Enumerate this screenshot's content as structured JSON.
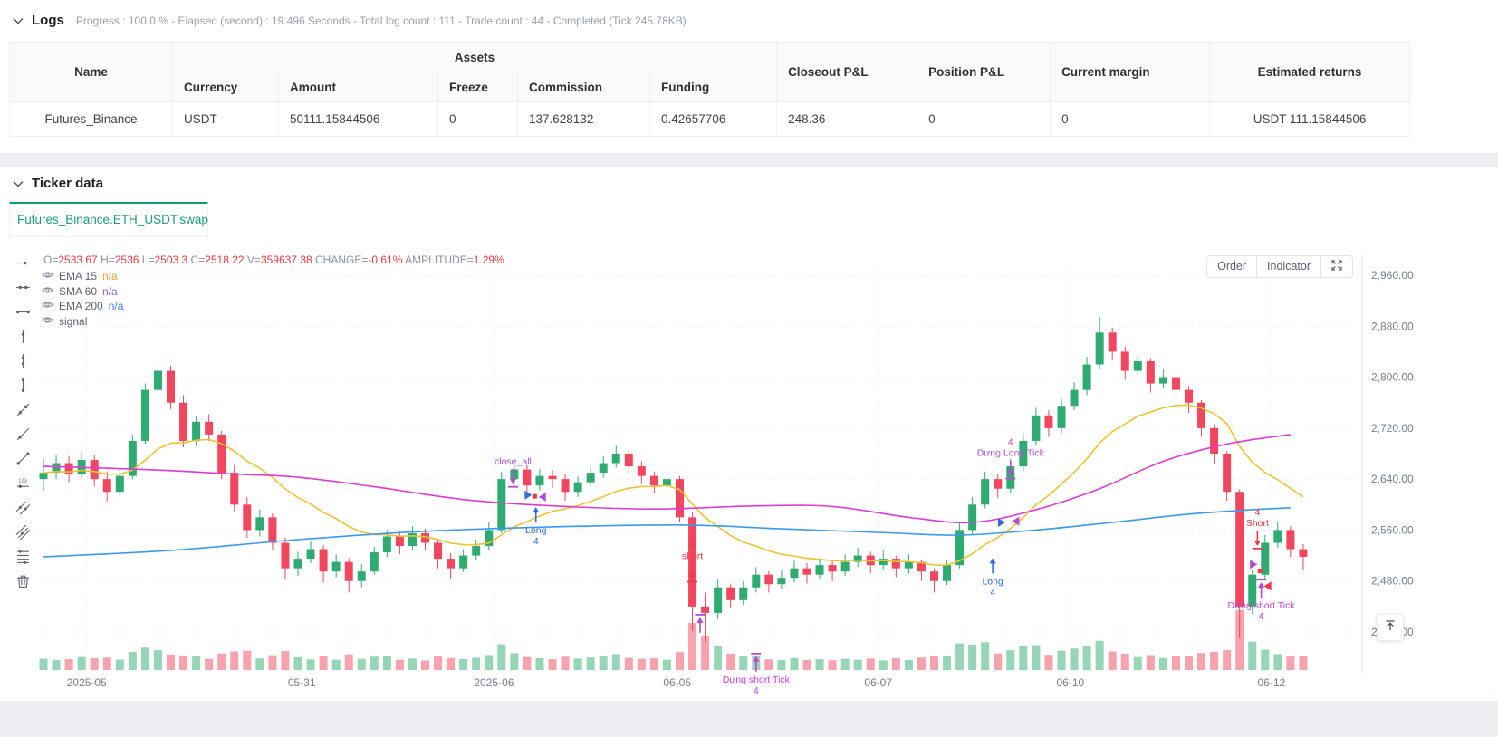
{
  "logs": {
    "title": "Logs",
    "summary": "Progress : 100.0 % - Elapsed (second) : 19.496  Seconds - Total log count : 111 - Trade count : 44 - Completed (Tick 245.78KB)"
  },
  "table": {
    "headers": {
      "name": "Name",
      "assets_group": "Assets",
      "currency": "Currency",
      "amount": "Amount",
      "freeze": "Freeze",
      "commission": "Commission",
      "funding": "Funding",
      "closeout": "Closeout P&L",
      "position": "Position P&L",
      "margin": "Current margin",
      "returns": "Estimated returns"
    },
    "rows": [
      {
        "name": "Futures_Binance",
        "currency": "USDT",
        "amount": "50111.15844506",
        "freeze": "0",
        "commission": "137.628132",
        "funding": "0.42657706",
        "closeout": "248.36",
        "position": "0",
        "margin": "0",
        "returns": "USDT 111.15844506"
      }
    ]
  },
  "ticker": {
    "title": "Ticker data",
    "tab_label": "Futures_Binance.ETH_USDT.swap"
  },
  "chart_toolbar": {
    "order": "Order",
    "indicator": "Indicator"
  },
  "chart_data": {
    "type": "candlestick",
    "ohlc_readout": [
      [
        "O=",
        "2533.67"
      ],
      [
        "H=",
        "2536"
      ],
      [
        "L=",
        "2503.3"
      ],
      [
        "C=",
        "2518.22"
      ],
      [
        "V=",
        "359637.38"
      ],
      [
        "CHANGE=",
        "-0.61%"
      ],
      [
        "AMPLITUDE=",
        "1.29%"
      ]
    ],
    "indicators": [
      {
        "name": "EMA 15",
        "value": "n/a",
        "value_color": "#f0a22f"
      },
      {
        "name": "SMA 60",
        "value": "n/a",
        "value_color": "#8f5fd6"
      },
      {
        "name": "EMA 200",
        "value": "n/a",
        "value_color": "#3d7ff0"
      },
      {
        "name": "signal",
        "value": "",
        "value_color": "#5b626e"
      }
    ],
    "price_ticks": [
      {
        "v": 2960,
        "label": "2,960.00"
      },
      {
        "v": 2880,
        "label": "2,880.00"
      },
      {
        "v": 2800,
        "label": "2,800.00"
      },
      {
        "v": 2720,
        "label": "2,720.00"
      },
      {
        "v": 2640,
        "label": "2,640.00"
      },
      {
        "v": 2560,
        "label": "2,560.00"
      },
      {
        "v": 2480,
        "label": "2,480.00"
      },
      {
        "v": 2400,
        "label": "2,400.00"
      }
    ],
    "x_ticks": [
      {
        "i": 3.4,
        "label": "2025-05"
      },
      {
        "i": 20.3,
        "label": "05-31"
      },
      {
        "i": 35.4,
        "label": "2025-06"
      },
      {
        "i": 49.8,
        "label": "06-05"
      },
      {
        "i": 65.6,
        "label": "06-07"
      },
      {
        "i": 80.7,
        "label": "06-10"
      },
      {
        "i": 96.5,
        "label": "06-12"
      }
    ],
    "colors": {
      "up": "#2eab70",
      "down": "#f2465e",
      "vol_up": "rgba(46,171,112,0.5)",
      "vol_down": "rgba(242,70,94,0.5)",
      "ema15": "#edc32e",
      "sma60": "#e13ad4",
      "ema200": "#3a9af0",
      "grid": "#e7eaee",
      "axis_text": "#747e8d",
      "axis_line": "#e3e6ea"
    },
    "candles": [
      [
        2640,
        2672,
        2622,
        2650,
        45
      ],
      [
        2650,
        2678,
        2640,
        2665,
        38
      ],
      [
        2665,
        2676,
        2635,
        2648,
        42
      ],
      [
        2648,
        2682,
        2640,
        2670,
        55
      ],
      [
        2670,
        2678,
        2628,
        2640,
        48
      ],
      [
        2640,
        2652,
        2605,
        2620,
        52
      ],
      [
        2620,
        2656,
        2612,
        2645,
        40
      ],
      [
        2645,
        2710,
        2640,
        2700,
        85
      ],
      [
        2700,
        2790,
        2695,
        2780,
        110
      ],
      [
        2780,
        2820,
        2765,
        2810,
        95
      ],
      [
        2810,
        2818,
        2750,
        2760,
        70
      ],
      [
        2760,
        2772,
        2690,
        2700,
        65
      ],
      [
        2700,
        2738,
        2692,
        2730,
        58
      ],
      [
        2730,
        2742,
        2700,
        2710,
        44
      ],
      [
        2710,
        2716,
        2640,
        2650,
        76
      ],
      [
        2650,
        2662,
        2588,
        2600,
        88
      ],
      [
        2600,
        2612,
        2548,
        2560,
        92
      ],
      [
        2560,
        2592,
        2550,
        2580,
        47
      ],
      [
        2580,
        2586,
        2528,
        2540,
        66
      ],
      [
        2540,
        2548,
        2482,
        2500,
        90
      ],
      [
        2500,
        2526,
        2488,
        2515,
        54
      ],
      [
        2515,
        2542,
        2508,
        2530,
        41
      ],
      [
        2530,
        2536,
        2478,
        2495,
        62
      ],
      [
        2495,
        2522,
        2486,
        2510,
        39
      ],
      [
        2510,
        2516,
        2462,
        2480,
        71
      ],
      [
        2480,
        2506,
        2470,
        2495,
        44
      ],
      [
        2495,
        2534,
        2490,
        2525,
        57
      ],
      [
        2525,
        2560,
        2518,
        2550,
        63
      ],
      [
        2550,
        2558,
        2522,
        2535,
        38
      ],
      [
        2535,
        2566,
        2528,
        2555,
        46
      ],
      [
        2555,
        2562,
        2528,
        2540,
        35
      ],
      [
        2540,
        2546,
        2500,
        2515,
        58
      ],
      [
        2515,
        2524,
        2484,
        2500,
        49
      ],
      [
        2500,
        2530,
        2494,
        2520,
        43
      ],
      [
        2520,
        2545,
        2512,
        2535,
        51
      ],
      [
        2535,
        2572,
        2528,
        2560,
        67
      ],
      [
        2560,
        2652,
        2555,
        2640,
        130
      ],
      [
        2640,
        2668,
        2625,
        2655,
        78
      ],
      [
        2655,
        2662,
        2618,
        2630,
        55
      ],
      [
        2630,
        2656,
        2622,
        2645,
        48
      ],
      [
        2645,
        2654,
        2626,
        2640,
        42
      ],
      [
        2640,
        2648,
        2606,
        2620,
        57
      ],
      [
        2620,
        2644,
        2612,
        2635,
        46
      ],
      [
        2635,
        2660,
        2628,
        2650,
        52
      ],
      [
        2650,
        2676,
        2642,
        2665,
        61
      ],
      [
        2665,
        2692,
        2658,
        2680,
        72
      ],
      [
        2680,
        2686,
        2648,
        2660,
        50
      ],
      [
        2660,
        2668,
        2632,
        2645,
        44
      ],
      [
        2645,
        2652,
        2618,
        2630,
        47
      ],
      [
        2630,
        2655,
        2622,
        2640,
        39
      ],
      [
        2640,
        2645,
        2572,
        2580,
        84
      ],
      [
        2580,
        2588,
        2402,
        2440,
        255
      ],
      [
        2440,
        2462,
        2385,
        2430,
        180
      ],
      [
        2430,
        2482,
        2420,
        2470,
        120
      ],
      [
        2470,
        2476,
        2438,
        2450,
        75
      ],
      [
        2450,
        2480,
        2442,
        2470,
        58
      ],
      [
        2470,
        2502,
        2462,
        2490,
        63
      ],
      [
        2490,
        2496,
        2462,
        2475,
        41
      ],
      [
        2475,
        2498,
        2468,
        2485,
        37
      ],
      [
        2485,
        2512,
        2478,
        2500,
        49
      ],
      [
        2500,
        2508,
        2476,
        2490,
        38
      ],
      [
        2490,
        2516,
        2482,
        2505,
        42
      ],
      [
        2505,
        2512,
        2480,
        2495,
        36
      ],
      [
        2495,
        2522,
        2488,
        2510,
        44
      ],
      [
        2510,
        2532,
        2502,
        2520,
        39
      ],
      [
        2520,
        2526,
        2492,
        2505,
        46
      ],
      [
        2505,
        2528,
        2498,
        2515,
        35
      ],
      [
        2515,
        2520,
        2486,
        2500,
        48
      ],
      [
        2500,
        2522,
        2492,
        2510,
        37
      ],
      [
        2510,
        2514,
        2480,
        2495,
        52
      ],
      [
        2495,
        2500,
        2462,
        2480,
        64
      ],
      [
        2480,
        2512,
        2474,
        2505,
        58
      ],
      [
        2505,
        2572,
        2500,
        2560,
        135
      ],
      [
        2560,
        2612,
        2552,
        2600,
        128
      ],
      [
        2600,
        2652,
        2594,
        2640,
        142
      ],
      [
        2640,
        2648,
        2610,
        2625,
        76
      ],
      [
        2625,
        2672,
        2618,
        2660,
        95
      ],
      [
        2660,
        2712,
        2652,
        2700,
        118
      ],
      [
        2700,
        2752,
        2694,
        2740,
        125
      ],
      [
        2740,
        2748,
        2706,
        2720,
        68
      ],
      [
        2720,
        2766,
        2712,
        2755,
        92
      ],
      [
        2755,
        2792,
        2748,
        2780,
        105
      ],
      [
        2780,
        2832,
        2772,
        2820,
        122
      ],
      [
        2820,
        2895,
        2812,
        2870,
        150
      ],
      [
        2870,
        2878,
        2826,
        2840,
        88
      ],
      [
        2840,
        2848,
        2796,
        2810,
        74
      ],
      [
        2810,
        2836,
        2800,
        2825,
        55
      ],
      [
        2825,
        2830,
        2776,
        2790,
        67
      ],
      [
        2790,
        2812,
        2782,
        2800,
        49
      ],
      [
        2800,
        2806,
        2766,
        2780,
        58
      ],
      [
        2780,
        2786,
        2744,
        2760,
        62
      ],
      [
        2760,
        2764,
        2706,
        2720,
        78
      ],
      [
        2720,
        2726,
        2664,
        2680,
        85
      ],
      [
        2680,
        2684,
        2606,
        2620,
        96
      ],
      [
        2620,
        2624,
        2390,
        2440,
        330
      ],
      [
        2440,
        2498,
        2428,
        2490,
        145
      ],
      [
        2490,
        2552,
        2484,
        2540,
        98
      ],
      [
        2540,
        2572,
        2532,
        2560,
        72
      ],
      [
        2560,
        2566,
        2518,
        2530,
        58
      ],
      [
        2530,
        2538,
        2498,
        2518,
        64
      ]
    ],
    "ma_lines": [
      {
        "name": "SMA 60",
        "color": "#e13ad4",
        "points": [
          [
            0,
            2660
          ],
          [
            8,
            2655
          ],
          [
            15,
            2648
          ],
          [
            20,
            2643
          ],
          [
            26,
            2628
          ],
          [
            33,
            2608
          ],
          [
            40,
            2598
          ],
          [
            48,
            2593
          ],
          [
            56,
            2598
          ],
          [
            62,
            2597
          ],
          [
            68,
            2580
          ],
          [
            73,
            2572
          ],
          [
            78,
            2592
          ],
          [
            83,
            2625
          ],
          [
            88,
            2668
          ],
          [
            93,
            2695
          ],
          [
            98,
            2710
          ]
        ]
      },
      {
        "name": "EMA 200",
        "color": "#3a9af0",
        "points": [
          [
            0,
            2518
          ],
          [
            10,
            2528
          ],
          [
            20,
            2545
          ],
          [
            30,
            2558
          ],
          [
            40,
            2565
          ],
          [
            50,
            2568
          ],
          [
            58,
            2562
          ],
          [
            66,
            2556
          ],
          [
            72,
            2552
          ],
          [
            78,
            2560
          ],
          [
            84,
            2572
          ],
          [
            90,
            2585
          ],
          [
            95,
            2592
          ],
          [
            98,
            2595
          ]
        ]
      }
    ],
    "signals": [
      {
        "i": 36.9,
        "p": 2632,
        "shape": "arrow-down",
        "bar": true,
        "color": "#b44bd6",
        "labels": [
          "close_all"
        ],
        "side": "above"
      },
      {
        "i": 38.1,
        "p": 2615,
        "shape": "tri-right",
        "color": "#2f6de0",
        "labels": []
      },
      {
        "i": 38.6,
        "p": 2613,
        "shape": "square",
        "color": "#f23645",
        "labels": []
      },
      {
        "i": 39.2,
        "p": 2612,
        "shape": "tri-left",
        "color": "#b44bd6",
        "labels": []
      },
      {
        "i": 38.7,
        "p": 2596,
        "shape": "arrow-up",
        "bar": false,
        "color": "#2f6de0",
        "labels": [
          "Long",
          "4"
        ],
        "side": "below"
      },
      {
        "i": 51.0,
        "p": 2483,
        "shape": "arrow-down",
        "bar": true,
        "color": "#f23645",
        "labels": [
          "4",
          "short"
        ],
        "side": "above"
      },
      {
        "i": 51.6,
        "p": 2423,
        "shape": "arrow-up",
        "bar": true,
        "color": "#b44bd6",
        "labels": [],
        "side": "below"
      },
      {
        "i": 56.0,
        "p": 2362,
        "shape": "arrow-up",
        "bar": true,
        "color": "#c93cd6",
        "labels": [
          "Dưng short Tick",
          "4"
        ],
        "side": "below"
      },
      {
        "i": 76.0,
        "p": 2645,
        "shape": "arrow-down",
        "bar": true,
        "color": "#b44bd6",
        "labels": [
          "4",
          "Dưng Long Tick"
        ],
        "side": "above"
      },
      {
        "i": 75.3,
        "p": 2572,
        "shape": "tri-right",
        "color": "#2f6de0",
        "labels": []
      },
      {
        "i": 76.4,
        "p": 2574,
        "shape": "tri-left",
        "color": "#b44bd6",
        "labels": []
      },
      {
        "i": 74.6,
        "p": 2516,
        "shape": "arrow-up",
        "bar": false,
        "color": "#2f6de0",
        "labels": [
          "Long",
          "4"
        ],
        "side": "below"
      },
      {
        "i": 95.4,
        "p": 2535,
        "shape": "arrow-down",
        "bar": true,
        "color": "#f23645",
        "labels": [
          "4",
          "Short"
        ],
        "side": "above"
      },
      {
        "i": 95.1,
        "p": 2506,
        "shape": "tri-right",
        "color": "#b44bd6",
        "labels": []
      },
      {
        "i": 95.6,
        "p": 2496,
        "shape": "square",
        "color": "#f23645",
        "labels": []
      },
      {
        "i": 96.2,
        "p": 2472,
        "shape": "tri-left",
        "color": "#f23645",
        "labels": []
      },
      {
        "i": 95.7,
        "p": 2478,
        "shape": "arrow-up",
        "bar": true,
        "color": "#c93cd6",
        "labels": [
          "Dưng short Tick",
          "4"
        ],
        "side": "below"
      }
    ]
  }
}
